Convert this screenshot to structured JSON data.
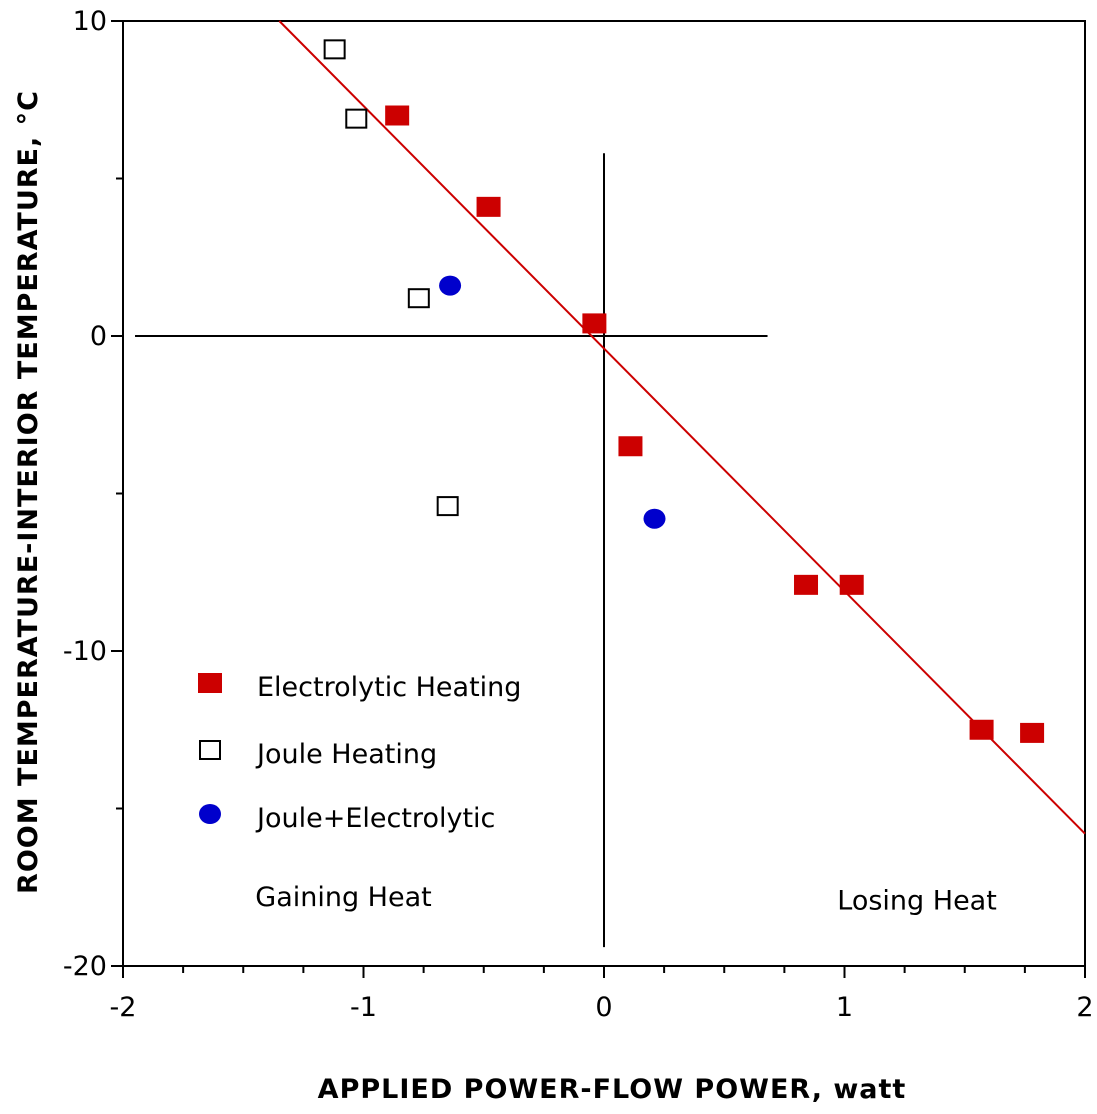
{
  "chart_data": {
    "type": "scatter",
    "title": "",
    "xlabel": "APPLIED POWER-FLOW POWER, watt",
    "ylabel": "ROOM TEMPERATURE-INTERIOR TEMPERATURE, °C",
    "xlim": [
      -2,
      2
    ],
    "ylim": [
      -20,
      10
    ],
    "xticks": [
      -2,
      -1,
      0,
      1,
      2
    ],
    "xtick_labels": [
      "-2",
      "-1",
      "0",
      "1",
      "2"
    ],
    "yticks": [
      -20,
      -10,
      0,
      10
    ],
    "ytick_labels": [
      "-20",
      "-10",
      "0",
      "10"
    ],
    "grid": false,
    "legend_position": "lower-left",
    "series": [
      {
        "name": "Electrolytic Heating",
        "marker": "filled-square",
        "color": "#cc0000",
        "x": [
          -0.86,
          -0.48,
          -0.04,
          0.11,
          0.84,
          1.03,
          1.57,
          1.78
        ],
        "y": [
          7.0,
          4.1,
          0.4,
          -3.5,
          -7.9,
          -7.9,
          -12.5,
          -12.6
        ]
      },
      {
        "name": "Joule Heating",
        "marker": "open-square",
        "color": "#000000",
        "x": [
          -1.12,
          -1.03,
          -0.77,
          -0.65
        ],
        "y": [
          9.1,
          6.9,
          1.2,
          -5.4
        ]
      },
      {
        "name": "Joule+Electrolytic",
        "marker": "filled-circle",
        "color": "#0000cc",
        "x": [
          -0.64,
          0.21
        ],
        "y": [
          1.6,
          -5.8
        ]
      }
    ],
    "fit_line": {
      "color": "#cc0000",
      "x": [
        -1.35,
        2.0
      ],
      "y": [
        10.0,
        -15.8
      ]
    },
    "reference_lines": {
      "horizontal": {
        "y": 0,
        "x_from": -1.95,
        "x_to": 0.68
      },
      "vertical": {
        "x": 0,
        "y_from": 5.8,
        "y_to": -19.4
      }
    },
    "annotations": [
      {
        "text": "Gaining Heat",
        "x": -1.45,
        "y": -18.1
      },
      {
        "text": "Losing Heat",
        "x": 0.97,
        "y": -18.2
      }
    ],
    "colors": {
      "electrolytic": "#cc0000",
      "joule": "#000000",
      "joule_electrolytic": "#0000cc",
      "fit_line": "#cc0000",
      "axes": "#000000"
    }
  }
}
